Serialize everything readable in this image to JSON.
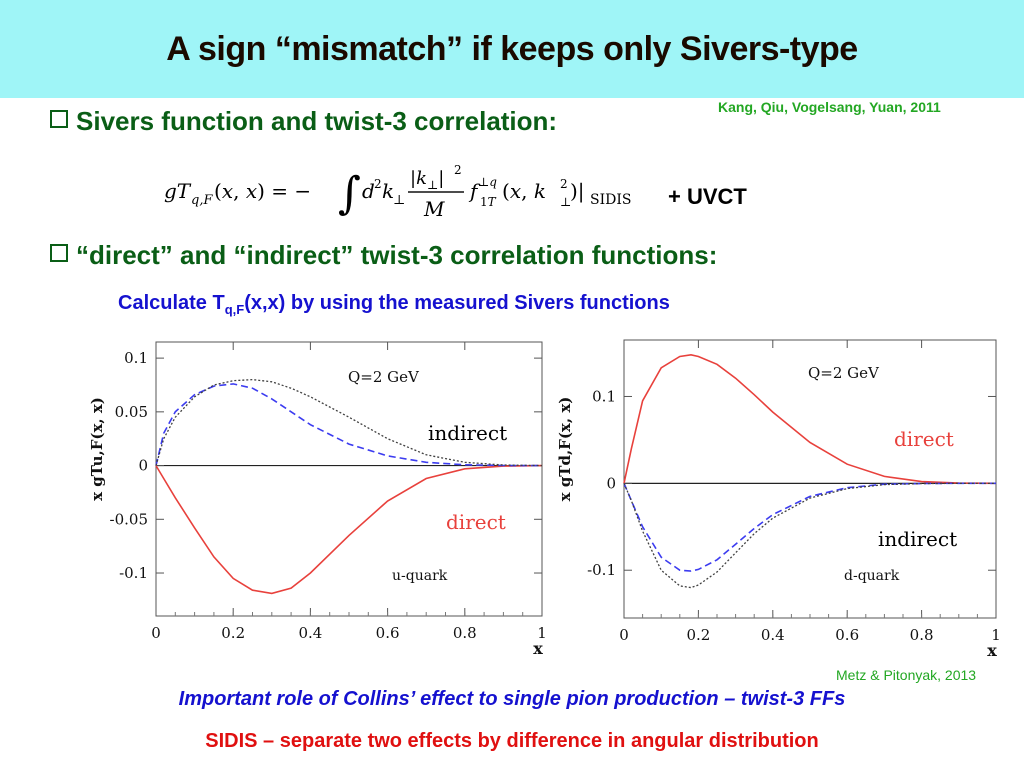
{
  "slide": {
    "title": "A sign “mismatch” if keeps only Sivers-type",
    "ref_top": "Kang, Qiu, Vogelsang, Yuan, 2011",
    "bullet1": "Sivers function and twist-3 correlation:",
    "formula_text": "gT_{q,F}(x,x) = − ∫ d²k⊥ |k⊥|²/M f_{1T}^{⊥q}(x,k⊥²)|SIDIS",
    "uvct": "+ UVCT",
    "bullet2": "“direct” and “indirect” twist-3 correlation functions:",
    "calc_pre": "Calculate T",
    "calc_sub": "q,F",
    "calc_post": "(x,x) by using the measured Sivers functions",
    "ref_bottom": "Metz & Pitonyak, 2013",
    "note1": "Important role of Collins’ effect to single pion production – twist-3 FFs",
    "note2": "SIDIS – separate two effects by difference in angular distribution"
  },
  "colors": {
    "direct": "#e8413c",
    "indirect": "#3c3cf0",
    "total": "#404040",
    "ref": "#23a723"
  },
  "chart_data": [
    {
      "type": "line",
      "ylabel": "x gT_{u,F}(x, x)",
      "xlabel": "x",
      "xlim": [
        0,
        1
      ],
      "ylim": [
        -0.14,
        0.115
      ],
      "xticks": [
        "0",
        "0.2",
        "0.4",
        "0.6",
        "0.8",
        "1"
      ],
      "yticks": [
        "0.1",
        "0.05",
        "0",
        "-0.05",
        "-0.1"
      ],
      "annotations": {
        "scale": "Q=2 GeV",
        "quark": "u-quark",
        "indirect": "indirect",
        "direct": "direct"
      },
      "series": [
        {
          "name": "direct",
          "style": "solid",
          "x": [
            0,
            0.02,
            0.05,
            0.1,
            0.15,
            0.2,
            0.25,
            0.3,
            0.35,
            0.4,
            0.5,
            0.6,
            0.7,
            0.8,
            0.9,
            1.0
          ],
          "values": [
            0,
            -0.012,
            -0.03,
            -0.058,
            -0.085,
            -0.105,
            -0.116,
            -0.119,
            -0.114,
            -0.1,
            -0.065,
            -0.033,
            -0.012,
            -0.003,
            -0.0005,
            0
          ]
        },
        {
          "name": "indirect",
          "style": "dashed",
          "x": [
            0,
            0.02,
            0.05,
            0.1,
            0.15,
            0.2,
            0.25,
            0.3,
            0.35,
            0.4,
            0.5,
            0.6,
            0.7,
            0.8,
            0.9,
            1.0
          ],
          "values": [
            0,
            0.03,
            0.05,
            0.066,
            0.074,
            0.076,
            0.072,
            0.062,
            0.05,
            0.038,
            0.02,
            0.009,
            0.003,
            0.0007,
            0.0001,
            0
          ]
        },
        {
          "name": "total",
          "style": "dotted",
          "x": [
            0,
            0.02,
            0.05,
            0.1,
            0.15,
            0.2,
            0.25,
            0.3,
            0.35,
            0.4,
            0.5,
            0.6,
            0.7,
            0.8,
            0.9,
            1.0
          ],
          "values": [
            0,
            0.025,
            0.045,
            0.064,
            0.075,
            0.079,
            0.08,
            0.078,
            0.072,
            0.064,
            0.045,
            0.025,
            0.01,
            0.003,
            0.0005,
            0
          ]
        }
      ]
    },
    {
      "type": "line",
      "ylabel": "x gT_{d,F}(x, x)",
      "xlabel": "x",
      "xlim": [
        0,
        1
      ],
      "ylim": [
        -0.155,
        0.165
      ],
      "xticks": [
        "0",
        "0.2",
        "0.4",
        "0.6",
        "0.8",
        "1"
      ],
      "yticks": [
        "0.1",
        "0",
        "-0.1"
      ],
      "annotations": {
        "scale": "Q=2 GeV",
        "quark": "d-quark",
        "direct": "direct",
        "indirect": "indirect"
      },
      "series": [
        {
          "name": "direct",
          "style": "solid",
          "x": [
            0,
            0.02,
            0.05,
            0.1,
            0.15,
            0.18,
            0.2,
            0.25,
            0.3,
            0.35,
            0.4,
            0.5,
            0.6,
            0.7,
            0.8,
            0.9,
            1.0
          ],
          "values": [
            0,
            0.04,
            0.095,
            0.133,
            0.146,
            0.148,
            0.146,
            0.137,
            0.121,
            0.102,
            0.082,
            0.047,
            0.022,
            0.008,
            0.002,
            0.0003,
            0
          ]
        },
        {
          "name": "indirect",
          "style": "dashed",
          "x": [
            0,
            0.02,
            0.05,
            0.1,
            0.15,
            0.18,
            0.2,
            0.25,
            0.3,
            0.35,
            0.4,
            0.5,
            0.6,
            0.7,
            0.8,
            0.9,
            1.0
          ],
          "values": [
            0,
            -0.02,
            -0.05,
            -0.085,
            -0.1,
            -0.101,
            -0.099,
            -0.088,
            -0.07,
            -0.052,
            -0.036,
            -0.015,
            -0.005,
            -0.001,
            -0.0002,
            0,
            0
          ]
        },
        {
          "name": "total",
          "style": "dotted",
          "x": [
            0,
            0.02,
            0.05,
            0.1,
            0.15,
            0.18,
            0.2,
            0.25,
            0.3,
            0.35,
            0.4,
            0.5,
            0.6,
            0.7,
            0.8,
            0.9,
            1.0
          ],
          "values": [
            0,
            -0.02,
            -0.055,
            -0.1,
            -0.118,
            -0.12,
            -0.117,
            -0.102,
            -0.08,
            -0.058,
            -0.04,
            -0.017,
            -0.006,
            -0.0015,
            -0.0003,
            0,
            0
          ]
        }
      ]
    }
  ]
}
